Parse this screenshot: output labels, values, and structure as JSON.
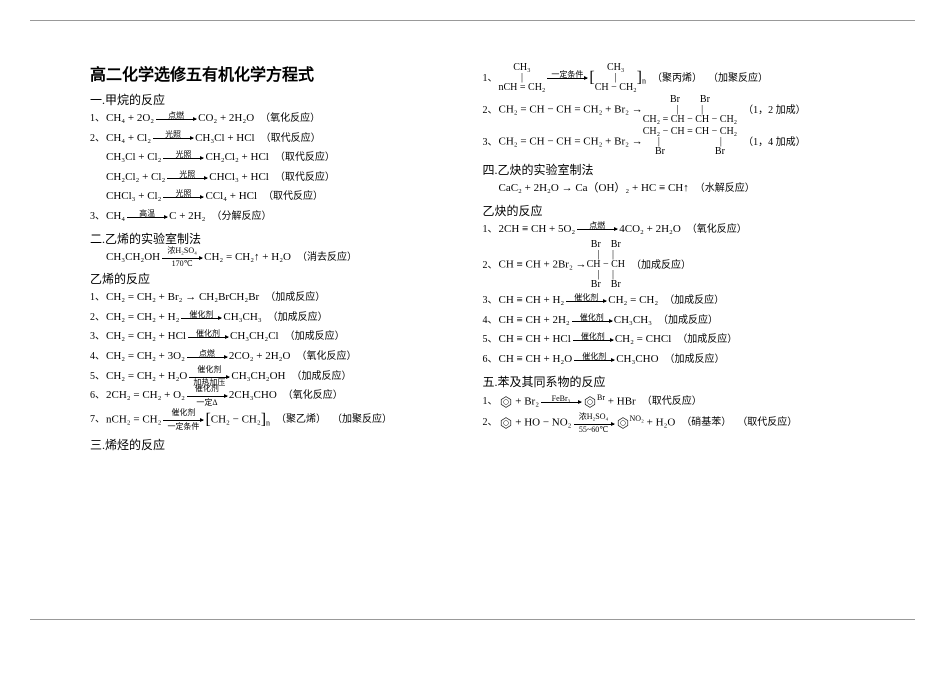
{
  "title": "高二化学选修五有机化学方程式",
  "colors": {
    "text": "#000000",
    "background": "#ffffff",
    "rule": "#999999"
  },
  "left_sections": [
    {
      "heading": "一.甲烷的反应",
      "items": [
        {
          "num": "1、",
          "lhs": "CH₄ + 2O₂",
          "arrow_top": "点燃",
          "rhs": "CO₂ + 2H₂O",
          "note": "（氧化反应）"
        },
        {
          "num": "2、",
          "lhs": "CH₄ + Cl₂",
          "arrow_top": "光照",
          "rhs": "CH₃Cl + HCl",
          "note": "（取代反应）"
        },
        {
          "num": "",
          "lhs": "CH₃Cl + Cl₂",
          "arrow_top": "光照",
          "rhs": "CH₂Cl₂ + HCl",
          "note": "（取代反应）"
        },
        {
          "num": "",
          "lhs": "CH₂Cl₂ + Cl₂",
          "arrow_top": "光照",
          "rhs": "CHCl₃ + HCl",
          "note": "（取代反应）"
        },
        {
          "num": "",
          "lhs": "CHCl₃ + Cl₂",
          "arrow_top": "光照",
          "rhs": "CCl₄ + HCl",
          "note": "（取代反应）"
        },
        {
          "num": "3、",
          "lhs": "CH₄",
          "arrow_top": "高温",
          "rhs": "C + 2H₂",
          "note": "（分解反应）"
        }
      ]
    },
    {
      "heading": "二.乙烯的实验室制法",
      "items": [
        {
          "num": "",
          "lhs": "CH₃CH₂OH",
          "arrow_top": "浓H₂SO₄",
          "arrow_bottom": "170℃",
          "rhs": "CH₂ = CH₂↑ + H₂O",
          "note": "（消去反应）"
        }
      ]
    },
    {
      "heading": "乙烯的反应",
      "items": [
        {
          "num": "1、",
          "lhs": "CH₂ = CH₂ + Br₂ → CH₂BrCH₂Br",
          "note": "（加成反应）"
        },
        {
          "num": "2、",
          "lhs": "CH₂ = CH₂ + H₂",
          "arrow_top": "催化剂",
          "rhs": "CH₃CH₃",
          "note": "（加成反应）"
        },
        {
          "num": "3、",
          "lhs": "CH₂ = CH₂ + HCl",
          "arrow_top": "催化剂",
          "rhs": "CH₃CH₂Cl",
          "note": "（加成反应）"
        },
        {
          "num": "4、",
          "lhs": "CH₂ = CH₂ + 3O₂",
          "arrow_top": "点燃",
          "rhs": "2CO₂ + 2H₂O",
          "note": "（氧化反应）"
        },
        {
          "num": "5、",
          "lhs": "CH₂ = CH₂ + H₂O",
          "arrow_top": "催化剂",
          "arrow_bottom": "加热加压",
          "rhs": "CH₃CH₂OH",
          "note": "（加成反应）"
        },
        {
          "num": "6、",
          "lhs": "2CH₂ = CH₂ + O₂",
          "arrow_top": "催化剂",
          "arrow_bottom": "一定Δ",
          "rhs": "2CH₃CHO",
          "note": "（氧化反应）"
        },
        {
          "num": "7、",
          "lhs": "nCH₂ = CH₂",
          "arrow_top": "催化剂",
          "arrow_bottom": "一定条件",
          "rhs_poly": "CH₂ − CH₂",
          "rhs_sub": "n",
          "note_tail": "（聚乙烯）",
          "note": "（加聚反应）"
        }
      ]
    },
    {
      "heading": "三.烯烃的反应",
      "items": []
    }
  ],
  "right_sections": [
    {
      "heading": "",
      "items": [
        {
          "num": "1、",
          "lhs_multi_top": "CH₃",
          "lhs_multi_mid": "|",
          "lhs": "nCH = CH₂",
          "arrow_top": "一定条件",
          "rhs_poly_top": "CH₃",
          "rhs_poly_mid": "|",
          "rhs_poly": "CH − CH₂",
          "rhs_sub": "n",
          "note_tail": "（聚丙烯）",
          "note": "（加聚反应）"
        },
        {
          "num": "2、",
          "lhs": "CH₂ = CH − CH = CH₂ + Br₂ →",
          "rhs_multi_top": "Br　　Br",
          "rhs_multi_mid": "|　　 |",
          "rhs": "CH₂ = CH − CH − CH₂",
          "note": "（1，2 加成）"
        },
        {
          "num": "3、",
          "lhs": "CH₂ = CH − CH = CH₂ + Br₂ →",
          "rhs_multi_top": "",
          "rhs": "CH₂ − CH = CH − CH₂",
          "rhs_multi_bot": "|　　　　　　|",
          "rhs_multi_bot2": "Br　　　　　Br",
          "note": "（1，4 加成）"
        }
      ]
    },
    {
      "heading": "四.乙炔的实验室制法",
      "items": [
        {
          "num": "",
          "lhs": "CaC₂ + 2H₂O → Ca（OH）₂ + HC ≡ CH↑",
          "note": "（水解反应）"
        }
      ]
    },
    {
      "heading": "乙炔的反应",
      "items": [
        {
          "num": "1、",
          "lhs": "2CH ≡ CH + 5O₂",
          "arrow_top": "点燃",
          "rhs": "4CO₂ + 2H₂O",
          "note": "（氧化反应）"
        },
        {
          "num": "2、",
          "lhs": "CH ≡ CH + 2Br₂ →",
          "rhs_multi_top": "Br　Br",
          "rhs_multi_mid": "|　 |",
          "rhs": "CH − CH",
          "rhs_multi_bot": "|　 |",
          "rhs_multi_bot2": "Br　Br",
          "note": "（加成反应）"
        },
        {
          "num": "3、",
          "lhs": "CH ≡ CH + H₂",
          "arrow_top": "催化剂",
          "rhs": "CH₂ = CH₂",
          "note": "（加成反应）"
        },
        {
          "num": "4、",
          "lhs": "CH ≡ CH + 2H₂",
          "arrow_top": "催化剂",
          "rhs": "CH₃CH₃",
          "note": "（加成反应）"
        },
        {
          "num": "5、",
          "lhs": "CH ≡ CH + HCl",
          "arrow_top": "催化剂",
          "rhs": "CH₂ = CHCl",
          "note": "（加成反应）"
        },
        {
          "num": "6、",
          "lhs": "CH ≡ CH + H₂O",
          "arrow_top": "催化剂",
          "rhs": "CH₃CHO",
          "note": "（加成反应）"
        }
      ]
    },
    {
      "heading": "五.苯及其同系物的反应",
      "items": [
        {
          "num": "1、",
          "benzene_lhs": true,
          "lhs": " + Br₂",
          "arrow_top": "FeBr₃",
          "benzene_rhs": true,
          "rhs_sup": "Br",
          "rhs": " + HBr",
          "note": "（取代反应）"
        },
        {
          "num": "2、",
          "benzene_lhs": true,
          "lhs": " + HO − NO₂",
          "arrow_top": "浓H₂SO₄",
          "arrow_bottom": "55~60℃",
          "benzene_rhs": true,
          "rhs_sup": "NO₂",
          "rhs": " + H₂O",
          "note_tail": "（硝基苯）",
          "note": "（取代反应）"
        }
      ]
    }
  ]
}
